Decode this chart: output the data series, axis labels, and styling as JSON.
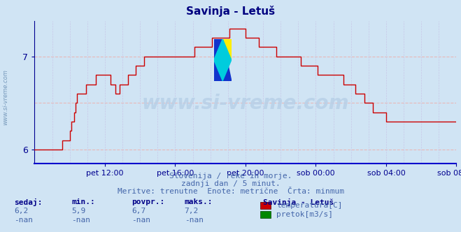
{
  "title": "Savinja - Letuš",
  "title_color": "#000080",
  "bg_color": "#d0e4f4",
  "plot_bg_color": "#d0e4f4",
  "line_color": "#cc0000",
  "line_color2": "#008800",
  "grid_color_h": "#e8b8b8",
  "grid_color_v": "#c8c8e8",
  "axis_bottom_color": "#0000cc",
  "tick_color": "#000090",
  "ylim": [
    5.85,
    7.38
  ],
  "watermark": "www.si-vreme.com",
  "subtitle1": "Slovenija / reke in morje.",
  "subtitle2": "zadnji dan / 5 minut.",
  "subtitle3": "Meritve: trenutne  Enote: metrične  Črta: minmum",
  "subtitle_color": "#4466aa",
  "xtick_labels": [
    "pet 12:00",
    "pet 16:00",
    "pet 20:00",
    "sob 00:00",
    "sob 04:00",
    "sob 08:00"
  ],
  "legend_title": "Savinja - Letuš",
  "legend_item1": "temperatura[C]",
  "legend_item2": "pretok[m3/s]",
  "legend_color1": "#cc0000",
  "legend_color2": "#008800",
  "stat_headers": [
    "sedaj:",
    "min.:",
    "povpr.:",
    "maks.:"
  ],
  "stat_values1": [
    "6,2",
    "5,9",
    "6,7",
    "7,2"
  ],
  "stat_values2": [
    "-nan",
    "-nan",
    "-nan",
    "-nan"
  ],
  "stat_color": "#4466aa",
  "stat_bold_color": "#000088",
  "key_x": [
    0.0,
    0.02,
    0.05,
    0.08,
    0.1,
    0.12,
    0.14,
    0.155,
    0.17,
    0.19,
    0.2,
    0.22,
    0.245,
    0.27,
    0.3,
    0.33,
    0.355,
    0.375,
    0.4,
    0.42,
    0.44,
    0.46,
    0.475,
    0.49,
    0.51,
    0.53,
    0.55,
    0.57,
    0.59,
    0.61,
    0.63,
    0.65,
    0.67,
    0.69,
    0.71,
    0.73,
    0.75,
    0.77,
    0.79,
    0.81,
    0.83,
    0.855,
    0.875,
    0.9,
    0.92,
    0.94,
    0.96,
    0.98,
    1.0
  ],
  "key_y": [
    5.95,
    5.95,
    6.0,
    6.1,
    6.55,
    6.65,
    6.7,
    6.85,
    6.85,
    6.65,
    6.65,
    6.75,
    6.9,
    7.0,
    7.0,
    7.0,
    7.05,
    7.05,
    7.1,
    7.15,
    7.2,
    7.25,
    7.3,
    7.3,
    7.2,
    7.15,
    7.1,
    7.05,
    7.0,
    7.0,
    6.95,
    6.9,
    6.85,
    6.8,
    6.8,
    6.75,
    6.7,
    6.6,
    6.5,
    6.4,
    6.35,
    6.3,
    6.3,
    6.3,
    6.35,
    6.3,
    6.3,
    6.3,
    6.3
  ]
}
